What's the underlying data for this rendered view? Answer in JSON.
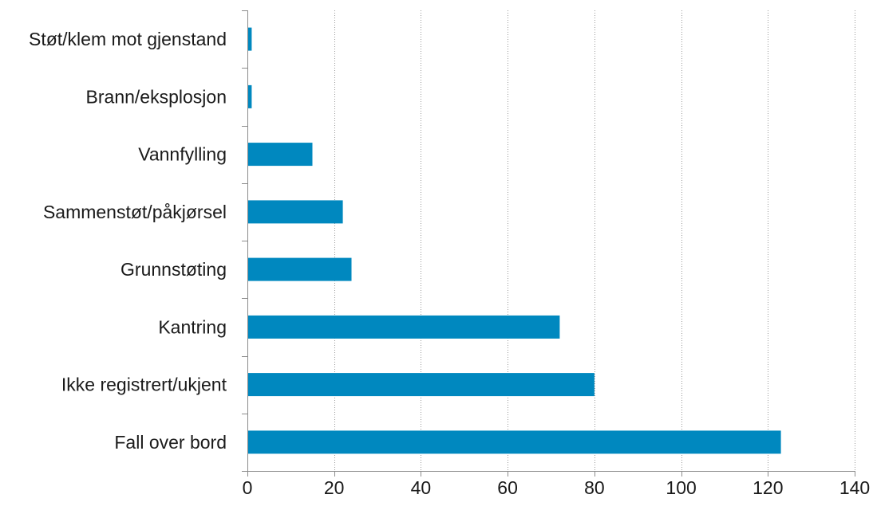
{
  "chart_data": {
    "type": "bar",
    "orientation": "horizontal",
    "categories": [
      "Støt/klem mot gjenstand",
      "Brann/eksplosjon",
      "Vannfylling",
      "Sammenstøt/påkjørsel",
      "Grunnstøting",
      "Kantring",
      "Ikke registrert/ukjent",
      "Fall over bord"
    ],
    "values": [
      1,
      1,
      15,
      22,
      24,
      72,
      80,
      123
    ],
    "xlim": [
      0,
      140
    ],
    "xticks": [
      0,
      20,
      40,
      60,
      80,
      100,
      120,
      140
    ],
    "title": "",
    "xlabel": "",
    "ylabel": "",
    "grid": "vertical dotted",
    "legend": "none",
    "bar_color": "#0088bf",
    "grid_color": "#9a9a9a",
    "axis_color": "#8c8c8c"
  }
}
